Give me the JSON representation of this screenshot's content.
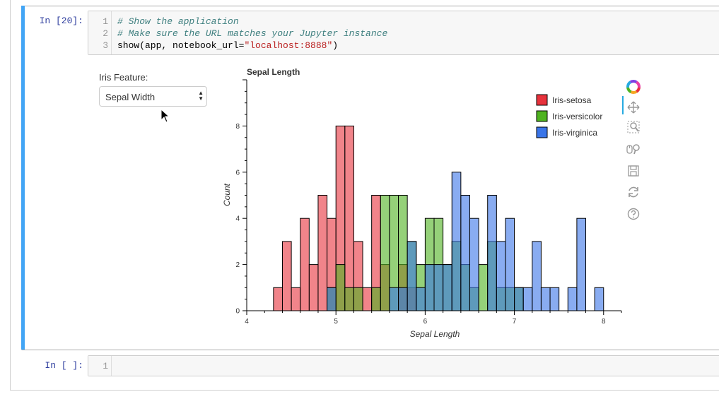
{
  "cells": [
    {
      "prompt": "In [20]:",
      "line_numbers": [
        "1",
        "2",
        "3"
      ],
      "code": {
        "line1_comment": "# Show the application",
        "line2_comment": "# Make sure the URL matches your Jupyter instance",
        "line3_pre": "show(app, notebook_url=",
        "line3_str": "\"localhost:8888\"",
        "line3_post": ")"
      }
    },
    {
      "prompt": "In [ ]:",
      "line_numbers": [
        "1"
      ]
    }
  ],
  "widget": {
    "label": "Iris Feature:",
    "selected": "Sepal Width"
  },
  "toolbar": {
    "tools": [
      "bokeh-logo-icon",
      "pan-icon",
      "box-zoom-icon",
      "wheel-zoom-icon",
      "save-icon",
      "reset-icon",
      "help-icon"
    ]
  },
  "chart_data": {
    "type": "bar",
    "title": "Sepal Length",
    "xlabel": "Sepal Length",
    "ylabel": "Count",
    "xlim": [
      4,
      8.2
    ],
    "ylim": [
      0,
      10
    ],
    "xticks": [
      4,
      5,
      6,
      7,
      8
    ],
    "yticks": [
      0,
      2,
      4,
      6,
      8
    ],
    "bin_width": 0.1,
    "legend_position": "top-right",
    "series": [
      {
        "name": "Iris-setosa",
        "color": "#e8323c",
        "bins": [
          [
            4.3,
            1
          ],
          [
            4.4,
            3
          ],
          [
            4.5,
            1
          ],
          [
            4.6,
            4
          ],
          [
            4.7,
            2
          ],
          [
            4.8,
            5
          ],
          [
            4.9,
            4
          ],
          [
            5.0,
            8
          ],
          [
            5.1,
            8
          ],
          [
            5.2,
            3
          ],
          [
            5.3,
            1
          ],
          [
            5.4,
            5
          ],
          [
            5.5,
            2
          ],
          [
            5.7,
            2
          ],
          [
            5.8,
            1
          ]
        ]
      },
      {
        "name": "Iris-versicolor",
        "color": "#4fb320",
        "bins": [
          [
            4.9,
            1
          ],
          [
            5.0,
            2
          ],
          [
            5.1,
            1
          ],
          [
            5.2,
            1
          ],
          [
            5.4,
            1
          ],
          [
            5.5,
            5
          ],
          [
            5.6,
            5
          ],
          [
            5.7,
            5
          ],
          [
            5.8,
            3
          ],
          [
            5.9,
            2
          ],
          [
            6.0,
            4
          ],
          [
            6.1,
            4
          ],
          [
            6.2,
            2
          ],
          [
            6.3,
            3
          ],
          [
            6.4,
            2
          ],
          [
            6.5,
            1
          ],
          [
            6.6,
            2
          ],
          [
            6.7,
            3
          ],
          [
            6.8,
            1
          ],
          [
            6.9,
            1
          ],
          [
            7.0,
            1
          ]
        ]
      },
      {
        "name": "Iris-virginica",
        "color": "#3a75e8",
        "bins": [
          [
            4.9,
            1
          ],
          [
            5.6,
            1
          ],
          [
            5.7,
            1
          ],
          [
            5.8,
            3
          ],
          [
            5.9,
            1
          ],
          [
            6.0,
            2
          ],
          [
            6.1,
            2
          ],
          [
            6.2,
            2
          ],
          [
            6.3,
            6
          ],
          [
            6.4,
            5
          ],
          [
            6.5,
            4
          ],
          [
            6.7,
            5
          ],
          [
            6.8,
            3
          ],
          [
            6.9,
            4
          ],
          [
            7.0,
            1
          ],
          [
            7.1,
            1
          ],
          [
            7.2,
            3
          ],
          [
            7.3,
            1
          ],
          [
            7.4,
            1
          ],
          [
            7.6,
            1
          ],
          [
            7.7,
            4
          ],
          [
            7.9,
            1
          ]
        ]
      }
    ]
  }
}
